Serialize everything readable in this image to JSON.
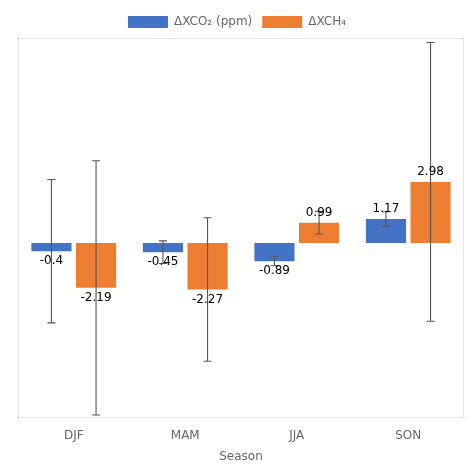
{
  "chart_data": {
    "type": "bar",
    "categories": [
      "DJF",
      "MAM",
      "JJA",
      "SON"
    ],
    "series": [
      {
        "name": "ΔXCO₂ (ppm)",
        "color": "#4472c4",
        "values": [
          -0.4,
          -0.45,
          -0.89,
          1.17
        ],
        "errors": [
          3.5,
          0.55,
          0.22,
          0.35
        ]
      },
      {
        "name": "ΔXCH₄",
        "color": "#ed7d31",
        "values": [
          -2.19,
          -2.27,
          0.99,
          2.98
        ],
        "errors": [
          6.2,
          3.5,
          0.55,
          6.8
        ]
      }
    ],
    "xlabel": "Season",
    "ylim": [
      -8.5,
      10
    ],
    "tick_labels": "x",
    "grid": false,
    "legend": "top",
    "data_labels": true
  }
}
